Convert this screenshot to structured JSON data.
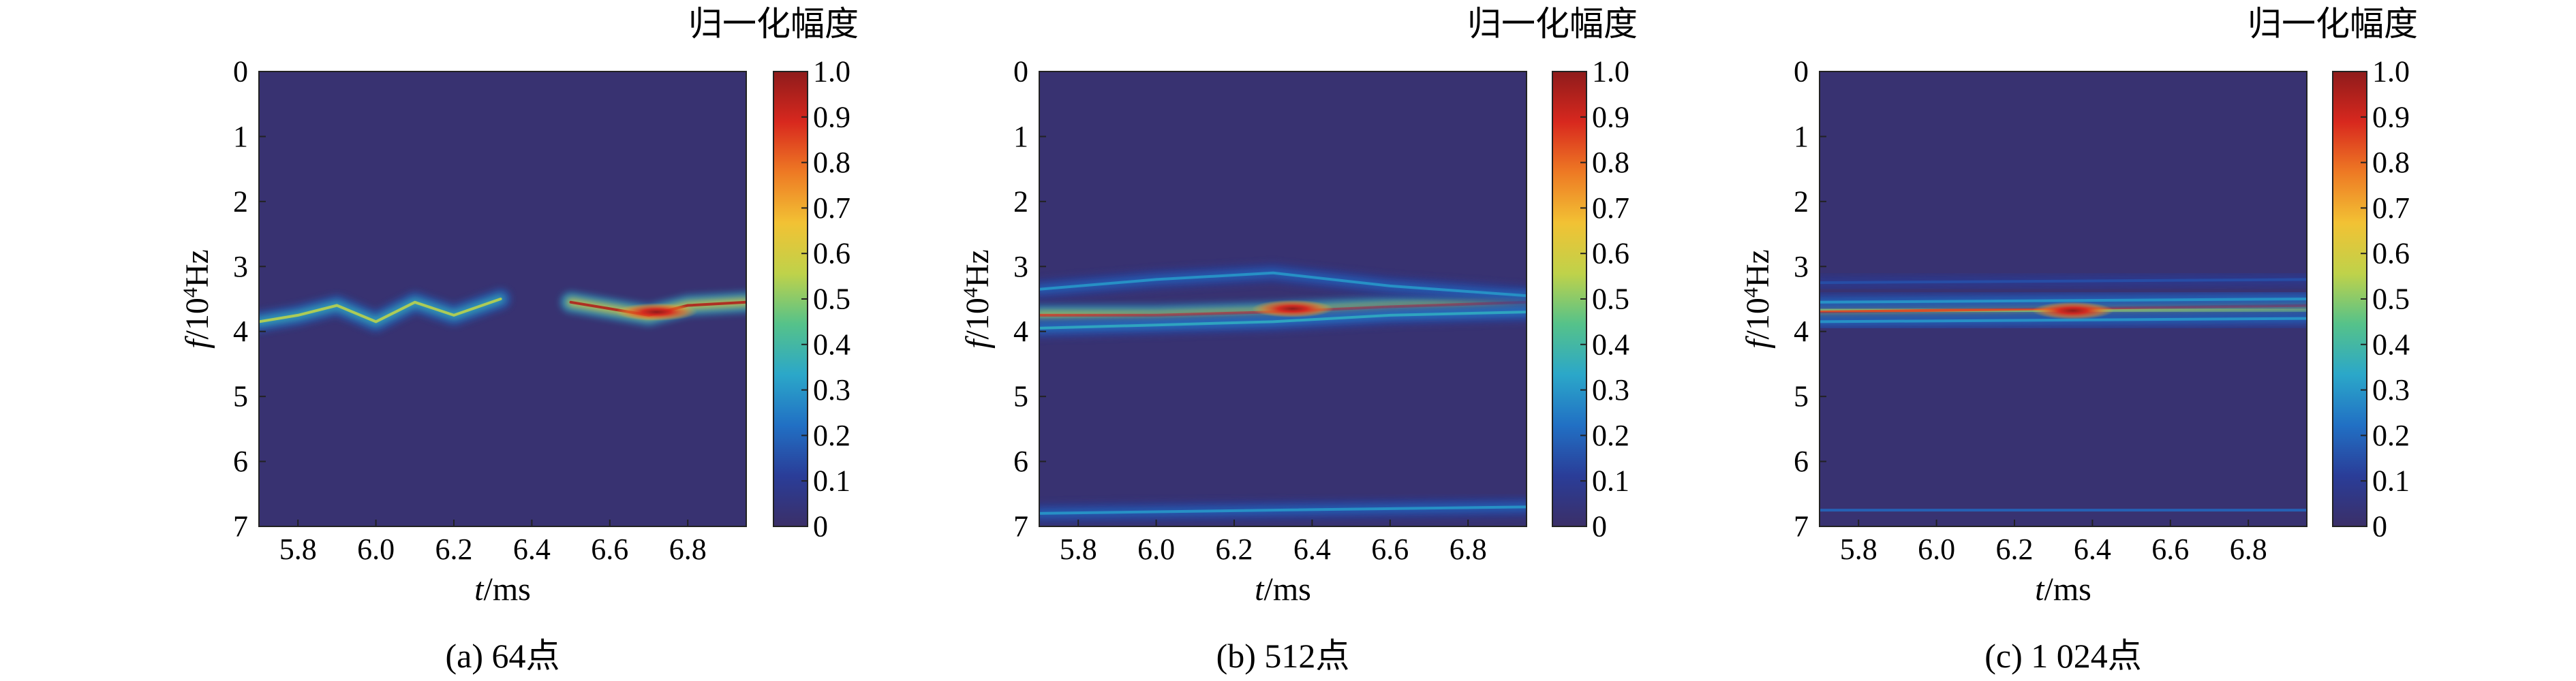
{
  "colorbar": {
    "title": "归一化幅度",
    "ticks": [
      "1.0",
      "0.9",
      "0.8",
      "0.7",
      "0.6",
      "0.5",
      "0.4",
      "0.3",
      "0.2",
      "0.1",
      "0"
    ],
    "colormap": "jet",
    "stops": [
      "#3b2f68",
      "#2a3d98",
      "#2170c4",
      "#2ba7c9",
      "#55c28a",
      "#bfd24a",
      "#f2c234",
      "#ee7a24",
      "#d8281e",
      "#8e1b1b"
    ]
  },
  "chart_data": [
    {
      "type": "heatmap",
      "panel_label": "(a) 64点",
      "xlabel": {
        "var": "t",
        "unit": "/ms"
      },
      "ylabel": {
        "var": "f",
        "unit": "/10",
        "exp": "4",
        "unit_after": "Hz"
      },
      "xlim": [
        5.7,
        6.95
      ],
      "ylim": [
        0,
        7
      ],
      "xticks": [
        "5.8",
        "6.0",
        "6.2",
        "6.4",
        "6.6",
        "6.8"
      ],
      "xtick_values": [
        5.8,
        6.0,
        6.2,
        6.4,
        6.6,
        6.8
      ],
      "yticks": [
        "0",
        "1",
        "2",
        "3",
        "4",
        "5",
        "6",
        "7"
      ],
      "yaxis_inverted": true,
      "clim": [
        0,
        1
      ],
      "ridges": [
        {
          "points": [
            [
              5.7,
              3.85
            ],
            [
              5.8,
              3.75
            ],
            [
              5.9,
              3.6
            ],
            [
              6.0,
              3.85
            ],
            [
              6.1,
              3.55
            ],
            [
              6.2,
              3.75
            ],
            [
              6.32,
              3.5
            ]
          ],
          "peak": 0.55
        },
        {
          "points": [
            [
              6.5,
              3.55
            ],
            [
              6.6,
              3.65
            ],
            [
              6.7,
              3.75
            ],
            [
              6.8,
              3.6
            ],
            [
              6.95,
              3.55
            ]
          ],
          "peak": 0.95
        }
      ],
      "hotspots": [
        {
          "t": 6.72,
          "f": 3.7,
          "value": 1.0
        }
      ]
    },
    {
      "type": "heatmap",
      "panel_label": "(b) 512点",
      "xlabel": {
        "var": "t",
        "unit": "/ms"
      },
      "ylabel": {
        "var": "f",
        "unit": "/10",
        "exp": "4",
        "unit_after": "Hz"
      },
      "xlim": [
        5.7,
        6.95
      ],
      "ylim": [
        0,
        7
      ],
      "xticks": [
        "5.8",
        "6.0",
        "6.2",
        "6.4",
        "6.6",
        "6.8"
      ],
      "xtick_values": [
        5.8,
        6.0,
        6.2,
        6.4,
        6.6,
        6.8
      ],
      "yticks": [
        "0",
        "1",
        "2",
        "3",
        "4",
        "5",
        "6",
        "7"
      ],
      "yaxis_inverted": true,
      "clim": [
        0,
        1
      ],
      "ridges": [
        {
          "points": [
            [
              5.7,
              3.75
            ],
            [
              6.0,
              3.75
            ],
            [
              6.3,
              3.7
            ],
            [
              6.6,
              3.62
            ],
            [
              6.95,
              3.55
            ]
          ],
          "peak": 0.85
        },
        {
          "points": [
            [
              5.7,
              3.35
            ],
            [
              6.0,
              3.2
            ],
            [
              6.3,
              3.1
            ],
            [
              6.6,
              3.3
            ],
            [
              6.95,
              3.45
            ]
          ],
          "peak": 0.3
        },
        {
          "points": [
            [
              5.7,
              3.95
            ],
            [
              6.0,
              3.9
            ],
            [
              6.3,
              3.85
            ],
            [
              6.6,
              3.75
            ],
            [
              6.95,
              3.7
            ]
          ],
          "peak": 0.35
        },
        {
          "points": [
            [
              5.7,
              6.8
            ],
            [
              6.3,
              6.75
            ],
            [
              6.95,
              6.7
            ]
          ],
          "peak": 0.3
        }
      ],
      "hotspots": [
        {
          "t": 6.35,
          "f": 3.65,
          "value": 1.0
        }
      ]
    },
    {
      "type": "heatmap",
      "panel_label": "(c) 1 024点",
      "xlabel": {
        "var": "t",
        "unit": "/ms"
      },
      "ylabel": {
        "var": "f",
        "unit": "/10",
        "exp": "4",
        "unit_after": "Hz"
      },
      "xlim": [
        5.7,
        6.95
      ],
      "ylim": [
        0,
        7
      ],
      "xticks": [
        "5.8",
        "6.0",
        "6.2",
        "6.4",
        "6.6",
        "6.8"
      ],
      "xtick_values": [
        5.8,
        6.0,
        6.2,
        6.4,
        6.6,
        6.8
      ],
      "yticks": [
        "0",
        "1",
        "2",
        "3",
        "4",
        "5",
        "6",
        "7"
      ],
      "yaxis_inverted": true,
      "clim": [
        0,
        1
      ],
      "ridges": [
        {
          "points": [
            [
              5.7,
              3.7
            ],
            [
              6.3,
              3.65
            ],
            [
              6.95,
              3.6
            ]
          ],
          "peak": 0.85
        },
        {
          "points": [
            [
              5.7,
              3.55
            ],
            [
              6.95,
              3.5
            ]
          ],
          "peak": 0.3
        },
        {
          "points": [
            [
              5.7,
              3.85
            ],
            [
              6.95,
              3.8
            ]
          ],
          "peak": 0.3
        },
        {
          "points": [
            [
              5.7,
              3.25
            ],
            [
              6.95,
              3.2
            ]
          ],
          "peak": 0.15
        },
        {
          "points": [
            [
              5.7,
              6.75
            ],
            [
              6.95,
              6.75
            ]
          ],
          "peak": 0.2
        }
      ],
      "hotspots": [
        {
          "t": 6.35,
          "f": 3.68,
          "value": 1.0
        }
      ]
    }
  ]
}
